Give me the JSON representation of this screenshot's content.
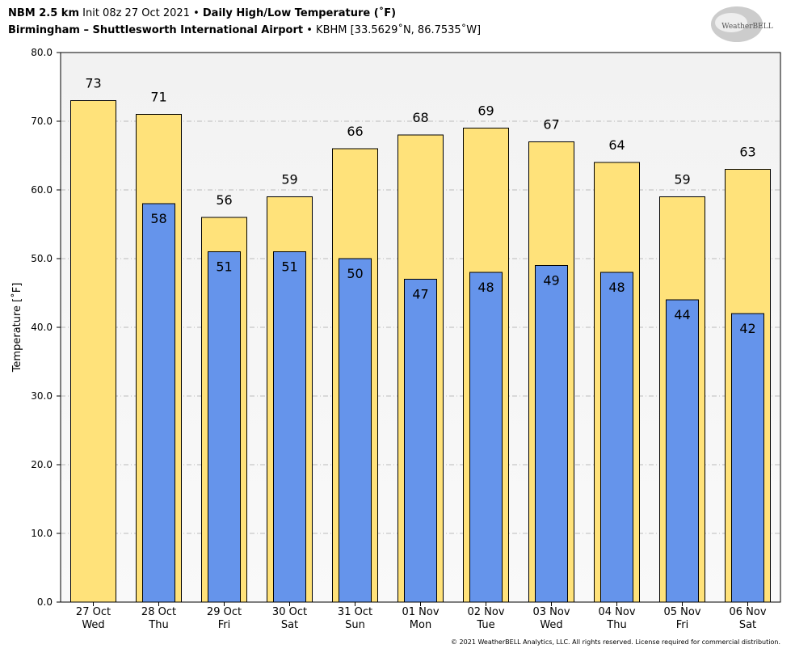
{
  "chart_data": {
    "type": "bar",
    "title": "NBM 2.5 km",
    "init": "Init 08z 27 Oct 2021",
    "separator": "•",
    "subtitle": "Daily High/Low Temperature (˚F)",
    "location": "Birmingham – Shuttlesworth International Airport",
    "station": "KBHM [33.5629˚N, 86.7535˚W]",
    "logo": "WeatherBELL",
    "credit": "© 2021 WeatherBELL Analytics, LLC. All rights reserved. License required for commercial distribution.",
    "y_label": "Temperature [˚F]",
    "categories": [
      [
        "27 Oct",
        "Wed"
      ],
      [
        "28 Oct",
        "Thu"
      ],
      [
        "29 Oct",
        "Fri"
      ],
      [
        "30 Oct",
        "Sat"
      ],
      [
        "31 Oct",
        "Sun"
      ],
      [
        "01 Nov",
        "Mon"
      ],
      [
        "02 Nov",
        "Tue"
      ],
      [
        "03 Nov",
        "Wed"
      ],
      [
        "04 Nov",
        "Thu"
      ],
      [
        "05 Nov",
        "Fri"
      ],
      [
        "06 Nov",
        "Sat"
      ]
    ],
    "series": [
      {
        "name": "High",
        "color": "#ffe27a",
        "values": [
          73,
          71,
          56,
          59,
          66,
          68,
          69,
          67,
          64,
          59,
          63
        ]
      },
      {
        "name": "Low",
        "color": "#6594eb",
        "values": [
          null,
          58,
          51,
          51,
          50,
          47,
          48,
          49,
          48,
          44,
          42
        ]
      }
    ],
    "ylim": [
      0,
      80
    ],
    "yticks": [
      {
        "value": 0,
        "label": "0.0"
      },
      {
        "value": 10,
        "label": "10.0"
      },
      {
        "value": 20,
        "label": "20.0"
      },
      {
        "value": 30,
        "label": "30.0"
      },
      {
        "value": 40,
        "label": "40.0"
      },
      {
        "value": 50,
        "label": "50.0"
      },
      {
        "value": 60,
        "label": "60.0"
      },
      {
        "value": 70,
        "label": "70.0"
      },
      {
        "value": 80,
        "label": "80.0"
      }
    ],
    "grid": true
  }
}
